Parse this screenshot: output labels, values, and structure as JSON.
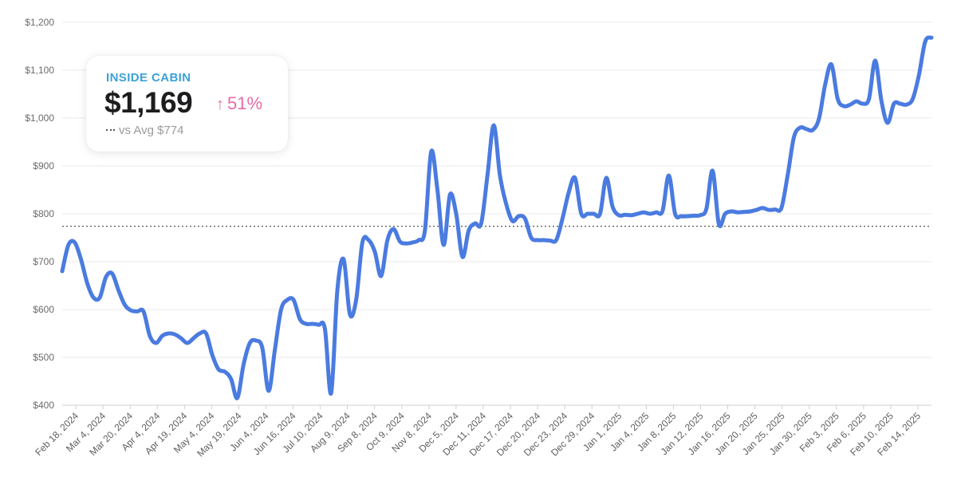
{
  "card": {
    "title": "INSIDE CABIN",
    "price": "$1,169",
    "change_arrow": "↑",
    "change": "51%",
    "avg_label": "vs Avg $774"
  },
  "colors": {
    "line": "#4a7be0",
    "title": "#3aa1d8",
    "change": "#e76ba6",
    "avg_line": "#555555",
    "grid": "#e9e9e9"
  },
  "chart_data": {
    "type": "line",
    "ylim": [
      400,
      1200
    ],
    "yticks": [
      400,
      500,
      600,
      700,
      800,
      900,
      1000,
      1100,
      1200
    ],
    "ytick_labels": [
      "$400",
      "$500",
      "$600",
      "$700",
      "$800",
      "$900",
      "$1,000",
      "$1,100",
      "$1,200"
    ],
    "x_tick_labels": [
      "Feb 18, 2024",
      "Mar 4, 2024",
      "Mar 20, 2024",
      "Apr 4, 2024",
      "Apr 19, 2024",
      "May 4, 2024",
      "May 19, 2024",
      "Jun 4, 2024",
      "Jun 16, 2024",
      "Jul 10, 2024",
      "Aug 9, 2024",
      "Sep 8, 2024",
      "Oct 9, 2024",
      "Nov 8, 2024",
      "Dec 5, 2024",
      "Dec 11, 2024",
      "Dec 17, 2024",
      "Dec 20, 2024",
      "Dec 23, 2024",
      "Dec 29, 2024",
      "Jan 1, 2025",
      "Jan 4, 2025",
      "Jan 8, 2025",
      "Jan 12, 2025",
      "Jan 16, 2025",
      "Jan 20, 2025",
      "Jan 25, 2025",
      "Jan 30, 2025",
      "Feb 3, 2025",
      "Feb 6, 2025",
      "Feb 10, 2025",
      "Feb 14, 2025"
    ],
    "average": 774,
    "grid": true,
    "series": [
      {
        "values": [
          680,
          735,
          740,
          705,
          655,
          625,
          625,
          668,
          675,
          640,
          610,
          598,
          596,
          596,
          545,
          530,
          545,
          550,
          548,
          540,
          530,
          540,
          550,
          550,
          505,
          475,
          470,
          455,
          415,
          485,
          530,
          535,
          520,
          430,
          515,
          600,
          620,
          620,
          580,
          570,
          570,
          568,
          560,
          425,
          640,
          705,
          590,
          620,
          740,
          745,
          720,
          670,
          745,
          768,
          742,
          738,
          740,
          745,
          765,
          930,
          850,
          735,
          840,
          800,
          710,
          765,
          780,
          780,
          880,
          985,
          880,
          820,
          785,
          795,
          790,
          750,
          745,
          745,
          744,
          745,
          790,
          845,
          875,
          800,
          800,
          800,
          800,
          875,
          815,
          797,
          798,
          797,
          800,
          803,
          800,
          803,
          806,
          880,
          800,
          795,
          795,
          796,
          797,
          810,
          890,
          778,
          800,
          805,
          803,
          804,
          805,
          808,
          812,
          808,
          809,
          812,
          880,
          960,
          980,
          977,
          975,
          998,
          1070,
          1112,
          1040,
          1025,
          1028,
          1035,
          1030,
          1040,
          1120,
          1035,
          990,
          1030,
          1030,
          1028,
          1040,
          1090,
          1160,
          1168
        ]
      }
    ]
  }
}
